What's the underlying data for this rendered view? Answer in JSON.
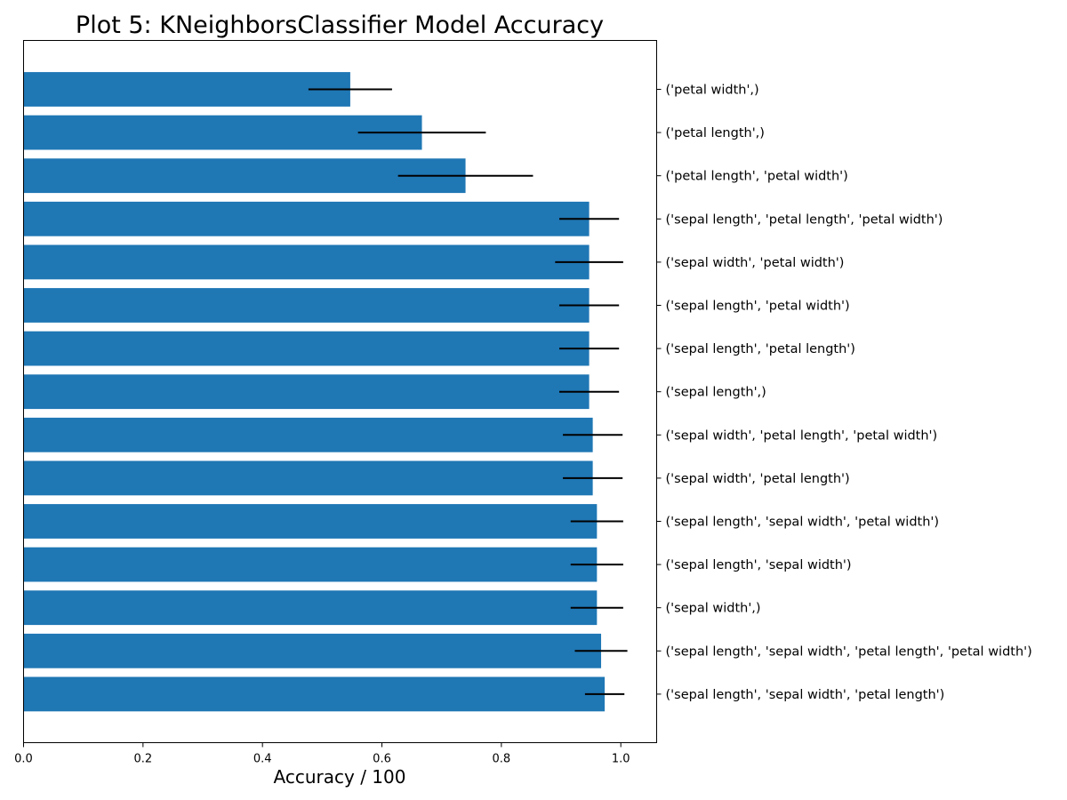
{
  "chart_data": {
    "type": "bar",
    "orientation": "horizontal",
    "title": "Plot 5: KNeighborsClassifier Model Accuracy",
    "xlabel": "Accuracy / 100",
    "ylabel": "",
    "xlim": [
      0,
      1.06
    ],
    "xticks": [
      "0.0",
      "0.2",
      "0.4",
      "0.6",
      "0.8",
      "1.0"
    ],
    "grid": false,
    "y_tick_side": "right",
    "bar_color": "#1f77b4",
    "error_color": "#000000",
    "categories": [
      "('petal width',)",
      "('petal length',)",
      "('petal length', 'petal width')",
      "('sepal length', 'petal length', 'petal width')",
      "('sepal width', 'petal width')",
      "('sepal length', 'petal width')",
      "('sepal length', 'petal length')",
      "('sepal length',)",
      "('sepal width', 'petal length', 'petal width')",
      "('sepal width', 'petal length')",
      "('sepal length', 'sepal width', 'petal width')",
      "('sepal length', 'sepal width')",
      "('sepal width',)",
      "('sepal length', 'sepal width', 'petal length', 'petal width')",
      "('sepal length', 'sepal width', 'petal length')"
    ],
    "values": [
      0.547,
      0.667,
      0.74,
      0.947,
      0.947,
      0.947,
      0.947,
      0.947,
      0.953,
      0.953,
      0.96,
      0.96,
      0.96,
      0.967,
      0.973
    ],
    "errors": [
      0.07,
      0.107,
      0.113,
      0.05,
      0.057,
      0.05,
      0.05,
      0.05,
      0.05,
      0.05,
      0.044,
      0.044,
      0.044,
      0.044,
      0.033
    ]
  }
}
